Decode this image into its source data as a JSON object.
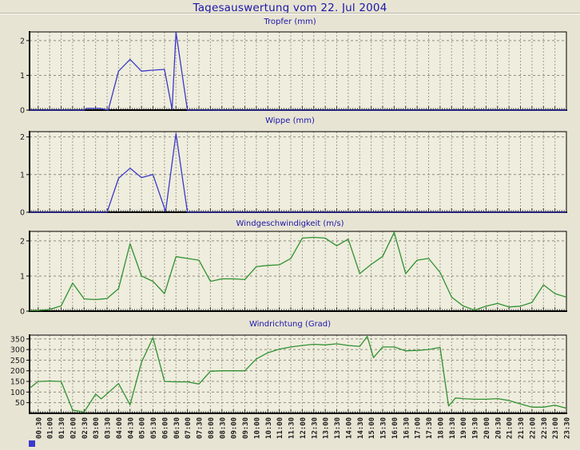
{
  "title": "Tagesauswertung vom 22. Jul 2004",
  "colors": {
    "page_bg": "#e8e4d4",
    "plot_bg": "#efeddd",
    "title_blue": "#1a16a8",
    "line_blue": "#3a3ac8",
    "line_green": "#2f9132",
    "axis": "#000000",
    "grid": "#a09d8e"
  },
  "x_axis": {
    "tick_labels": [
      "00:30",
      "01:00",
      "01:30",
      "02:00",
      "02:30",
      "03:00",
      "03:30",
      "04:00",
      "04:30",
      "05:00",
      "05:30",
      "06:00",
      "06:30",
      "07:00",
      "07:30",
      "08:00",
      "08:30",
      "09:00",
      "09:30",
      "10:00",
      "10:30",
      "11:00",
      "11:30",
      "12:00",
      "12:30",
      "13:00",
      "13:30",
      "14:00",
      "14:30",
      "15:00",
      "15:30",
      "16:00",
      "16:30",
      "17:00",
      "17:30",
      "18:00",
      "18:30",
      "19:00",
      "19:30",
      "20:00",
      "20:30",
      "21:00",
      "21:30",
      "22:00",
      "22:30",
      "23:00",
      "23:30"
    ]
  },
  "chart_data": [
    {
      "type": "line",
      "title": "Tropfer (mm)",
      "ylabel": "mm",
      "color": "#3a3ac8",
      "ylim": [
        0,
        2.25
      ],
      "yticks": [
        0,
        1,
        2
      ],
      "grid": true,
      "points": [
        [
          0.125,
          0
        ],
        [
          2.5,
          0
        ],
        [
          2.6,
          0.05
        ],
        [
          3.2,
          0.05
        ],
        [
          3.35,
          0.03
        ],
        [
          3.55,
          0
        ],
        [
          4,
          1.12
        ],
        [
          4.5,
          1.46
        ],
        [
          5,
          1.12
        ],
        [
          5.5,
          1.15
        ],
        [
          6,
          1.17
        ],
        [
          6.33,
          0.02
        ],
        [
          6.5,
          2.24
        ],
        [
          7,
          0
        ],
        [
          23.5,
          0
        ]
      ]
    },
    {
      "type": "line",
      "title": "Wippe (mm)",
      "ylabel": "mm",
      "color": "#3a3ac8",
      "ylim": [
        0,
        2.14
      ],
      "yticks": [
        0,
        1,
        2
      ],
      "grid": true,
      "points": [
        [
          0.125,
          0
        ],
        [
          3.5,
          0
        ],
        [
          4,
          0.9
        ],
        [
          4.5,
          1.17
        ],
        [
          5,
          0.92
        ],
        [
          5.5,
          1.0
        ],
        [
          6.05,
          0.02
        ],
        [
          6.5,
          2.09
        ],
        [
          7,
          0
        ],
        [
          23.5,
          0
        ]
      ]
    },
    {
      "type": "line",
      "title": "Windgeschwindigkeit (m/s)",
      "ylabel": "m/s",
      "color": "#2f9132",
      "ylim": [
        0,
        2.27
      ],
      "yticks": [
        0,
        1,
        2
      ],
      "grid": true,
      "points": [
        [
          0.125,
          0.02
        ],
        [
          0.5,
          0.02
        ],
        [
          1,
          0.05
        ],
        [
          1.5,
          0.15
        ],
        [
          2,
          0.8
        ],
        [
          2.5,
          0.35
        ],
        [
          3,
          0.33
        ],
        [
          3.5,
          0.36
        ],
        [
          4,
          0.64
        ],
        [
          4.5,
          1.92
        ],
        [
          5,
          1.0
        ],
        [
          5.5,
          0.85
        ],
        [
          6,
          0.5
        ],
        [
          6.5,
          1.55
        ],
        [
          7,
          1.5
        ],
        [
          7.5,
          1.45
        ],
        [
          8,
          0.85
        ],
        [
          8.5,
          0.92
        ],
        [
          9,
          0.92
        ],
        [
          9.5,
          0.9
        ],
        [
          10,
          1.27
        ],
        [
          10.5,
          1.3
        ],
        [
          11,
          1.32
        ],
        [
          11.5,
          1.5
        ],
        [
          12,
          2.08
        ],
        [
          12.5,
          2.1
        ],
        [
          13,
          2.08
        ],
        [
          13.5,
          1.86
        ],
        [
          14,
          2.05
        ],
        [
          14.5,
          1.07
        ],
        [
          15,
          1.33
        ],
        [
          15.5,
          1.56
        ],
        [
          16,
          2.24
        ],
        [
          16.5,
          1.07
        ],
        [
          17,
          1.45
        ],
        [
          17.5,
          1.5
        ],
        [
          18,
          1.1
        ],
        [
          18.5,
          0.4
        ],
        [
          19,
          0.15
        ],
        [
          19.5,
          0.03
        ],
        [
          20,
          0.14
        ],
        [
          20.5,
          0.22
        ],
        [
          21,
          0.12
        ],
        [
          21.5,
          0.14
        ],
        [
          22,
          0.25
        ],
        [
          22.5,
          0.75
        ],
        [
          23,
          0.5
        ],
        [
          23.5,
          0.4
        ]
      ]
    },
    {
      "type": "line",
      "title": "Windrichtung (Grad)",
      "ylabel": "Grad",
      "color": "#2f9132",
      "ylim": [
        0,
        368
      ],
      "yticks": [
        50,
        100,
        150,
        200,
        250,
        300,
        350
      ],
      "grid": true,
      "points": [
        [
          0.125,
          118
        ],
        [
          0.5,
          150
        ],
        [
          1,
          152
        ],
        [
          1.5,
          150
        ],
        [
          2,
          15
        ],
        [
          2.5,
          6
        ],
        [
          3,
          90
        ],
        [
          3.25,
          68
        ],
        [
          4,
          140
        ],
        [
          4.5,
          40
        ],
        [
          5,
          240
        ],
        [
          5.5,
          356
        ],
        [
          6,
          150
        ],
        [
          6.5,
          148
        ],
        [
          7,
          148
        ],
        [
          7.5,
          138
        ],
        [
          8,
          198
        ],
        [
          8.5,
          200
        ],
        [
          9,
          200
        ],
        [
          9.5,
          200
        ],
        [
          10,
          256
        ],
        [
          10.5,
          285
        ],
        [
          11,
          302
        ],
        [
          11.5,
          312
        ],
        [
          12,
          319
        ],
        [
          12.5,
          325
        ],
        [
          13,
          322
        ],
        [
          13.5,
          327
        ],
        [
          14,
          319
        ],
        [
          14.5,
          315
        ],
        [
          14.83,
          362
        ],
        [
          15.1,
          262
        ],
        [
          15.5,
          312
        ],
        [
          16,
          312
        ],
        [
          16.5,
          294
        ],
        [
          17,
          296
        ],
        [
          17.5,
          300
        ],
        [
          18,
          310
        ],
        [
          18.37,
          34
        ],
        [
          18.67,
          72
        ],
        [
          19,
          69
        ],
        [
          19.5,
          66
        ],
        [
          20,
          66
        ],
        [
          20.5,
          69
        ],
        [
          21,
          60
        ],
        [
          21.5,
          44
        ],
        [
          22,
          29
        ],
        [
          22.5,
          29
        ],
        [
          23,
          38
        ],
        [
          23.5,
          24
        ]
      ]
    }
  ]
}
